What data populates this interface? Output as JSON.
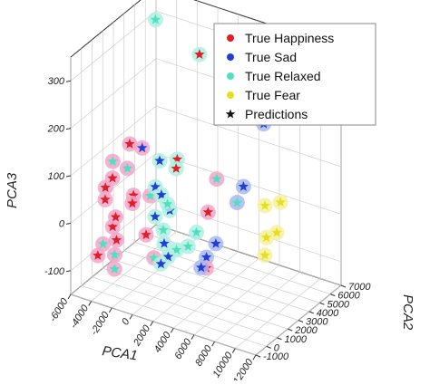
{
  "chart_data": {
    "type": "scatter",
    "projection": "3d",
    "title": "",
    "xlabel": "PCA1",
    "ylabel": "PCA2",
    "zlabel": "PCA3",
    "xlim": [
      -6000,
      12000
    ],
    "ylim": [
      -1000,
      7000
    ],
    "zlim": [
      -150,
      350
    ],
    "x_ticks": [
      "-6000",
      "-4000",
      "-2000",
      "0",
      "2000",
      "4000",
      "6000",
      "8000",
      "10000",
      "12000"
    ],
    "y_ticks": [
      "-1000",
      "0",
      "1000",
      "2000",
      "3000",
      "4000",
      "5000",
      "6000",
      "7000"
    ],
    "z_ticks": [
      "-100",
      "0",
      "100",
      "200",
      "300"
    ],
    "grid": true,
    "legend_position": "top-right",
    "legend": [
      {
        "label": "True Happiness",
        "marker": "circle",
        "color": "#e11d2a"
      },
      {
        "label": "True Sad",
        "marker": "circle",
        "color": "#1f3fd6"
      },
      {
        "label": "True Relaxed",
        "marker": "circle",
        "color": "#4fe0c2"
      },
      {
        "label": "True Fear",
        "marker": "circle",
        "color": "#e8df1a"
      },
      {
        "label": "Predictions",
        "marker": "star",
        "color": "#111111"
      }
    ],
    "class_colors": {
      "Happiness": {
        "halo": "#f2a6c8",
        "mark": "#e11d2a"
      },
      "Sad": {
        "halo": "#aab8ee",
        "mark": "#1f3fd6"
      },
      "Relaxed": {
        "halo": "#aff0e2",
        "mark": "#4fe0c2"
      },
      "Fear": {
        "halo": "#f4f1a0",
        "mark": "#e8df1a"
      }
    },
    "series": [
      {
        "class": "Happiness",
        "points": [
          {
            "x": -4000,
            "y": 2600,
            "z": 115,
            "pred": "Happiness"
          },
          {
            "x": -3200,
            "y": 3000,
            "z": 105,
            "pred": "Sad"
          },
          {
            "x": -4300,
            "y": 1300,
            "z": 100,
            "pred": "Relaxed"
          },
          {
            "x": -3500,
            "y": 1900,
            "z": 80,
            "pred": "Relaxed"
          },
          {
            "x": -3700,
            "y": 700,
            "z": 80,
            "pred": "Happiness"
          },
          {
            "x": -4600,
            "y": 900,
            "z": 50,
            "pred": "Happiness"
          },
          {
            "x": -4000,
            "y": 300,
            "z": 40,
            "pred": "Happiness"
          },
          {
            "x": -2800,
            "y": 1800,
            "z": 30,
            "pred": "Happiness"
          },
          {
            "x": -2600,
            "y": 1500,
            "z": 20,
            "pred": "Happiness"
          },
          {
            "x": -2000,
            "y": 2600,
            "z": 20,
            "pred": "Relaxed"
          },
          {
            "x": -3600,
            "y": 900,
            "z": -5,
            "pred": "Happiness"
          },
          {
            "x": -4000,
            "y": 1000,
            "z": -30,
            "pred": "Happiness"
          },
          {
            "x": -3000,
            "y": 400,
            "z": -40,
            "pred": "Happiness"
          },
          {
            "x": -4200,
            "y": 300,
            "z": -55,
            "pred": "Relaxed"
          },
          {
            "x": -4200,
            "y": -200,
            "z": -70,
            "pred": "Happiness"
          },
          {
            "x": -3700,
            "y": 900,
            "z": -85,
            "pred": "Relaxed"
          },
          {
            "x": -3300,
            "y": 500,
            "z": -105,
            "pred": "Relaxed"
          },
          {
            "x": -2200,
            "y": 2400,
            "z": -60,
            "pred": "Happiness"
          },
          {
            "x": -500,
            "y": 1500,
            "z": -80,
            "pred": "Relaxed"
          },
          {
            "x": 3000,
            "y": 3200,
            "z": 10,
            "pred": "Happiness"
          },
          {
            "x": 2800,
            "y": 4200,
            "z": 60,
            "pred": "Relaxed"
          },
          {
            "x": 4800,
            "y": 1300,
            "z": -60,
            "pred": "Happiness"
          }
        ]
      },
      {
        "class": "Sad",
        "points": [
          {
            "x": 4800,
            "y": 6500,
            "z": 160,
            "pred": "Sad"
          },
          {
            "x": 5200,
            "y": 6300,
            "z": 155,
            "pred": "Sad"
          },
          {
            "x": 5300,
            "y": 4300,
            "z": 60,
            "pred": "Sad"
          },
          {
            "x": 5200,
            "y": 3800,
            "z": 35,
            "pred": "Relaxed"
          },
          {
            "x": 5000,
            "y": 2000,
            "z": -20,
            "pred": "Sad"
          },
          {
            "x": 4500,
            "y": 1600,
            "z": -45,
            "pred": "Sad"
          },
          {
            "x": 4400,
            "y": 1200,
            "z": -60,
            "pred": "Sad"
          }
        ]
      },
      {
        "class": "Relaxed",
        "points": [
          {
            "x": -4500,
            "y": 5500,
            "z": 320,
            "pred": "Relaxed"
          },
          {
            "x": 300,
            "y": 5000,
            "z": 290,
            "pred": "Happiness"
          },
          {
            "x": -1500,
            "y": 3000,
            "z": 90,
            "pred": "Sad"
          },
          {
            "x": 0,
            "y": 3200,
            "z": 100,
            "pred": "Happiness"
          },
          {
            "x": 100,
            "y": 3000,
            "z": 85,
            "pred": "Happiness"
          },
          {
            "x": -1200,
            "y": 2300,
            "z": 50,
            "pred": "Sad"
          },
          {
            "x": -500,
            "y": 2200,
            "z": 40,
            "pred": "Sad"
          },
          {
            "x": 300,
            "y": 2000,
            "z": 30,
            "pred": "Relaxed"
          },
          {
            "x": -700,
            "y": 1800,
            "z": 0,
            "pred": "Sad"
          },
          {
            "x": 0,
            "y": 2500,
            "z": 5,
            "pred": "Sad"
          },
          {
            "x": 200,
            "y": 1700,
            "z": -20,
            "pred": "Relaxed"
          },
          {
            "x": 600,
            "y": 1400,
            "z": -40,
            "pred": "Sad"
          },
          {
            "x": 2700,
            "y": 2400,
            "z": -20,
            "pred": "Relaxed"
          },
          {
            "x": 1200,
            "y": 1200,
            "z": -60,
            "pred": "Sad"
          },
          {
            "x": 700,
            "y": 1000,
            "z": -75,
            "pred": "Sad"
          },
          {
            "x": 1800,
            "y": 1400,
            "z": -45,
            "pred": "Relaxed"
          },
          {
            "x": 2500,
            "y": 1800,
            "z": -40,
            "pred": "Relaxed"
          }
        ]
      },
      {
        "class": "Fear",
        "points": [
          {
            "x": 7600,
            "y": 4100,
            "z": 40,
            "pred": "Fear"
          },
          {
            "x": 8800,
            "y": 4400,
            "z": 50,
            "pred": "Fear"
          },
          {
            "x": 9600,
            "y": 2300,
            "z": 20,
            "pred": "Fear"
          },
          {
            "x": 10300,
            "y": 2600,
            "z": 30,
            "pred": "Fear"
          },
          {
            "x": 10600,
            "y": 1200,
            "z": 10,
            "pred": "Fear"
          }
        ]
      }
    ]
  }
}
